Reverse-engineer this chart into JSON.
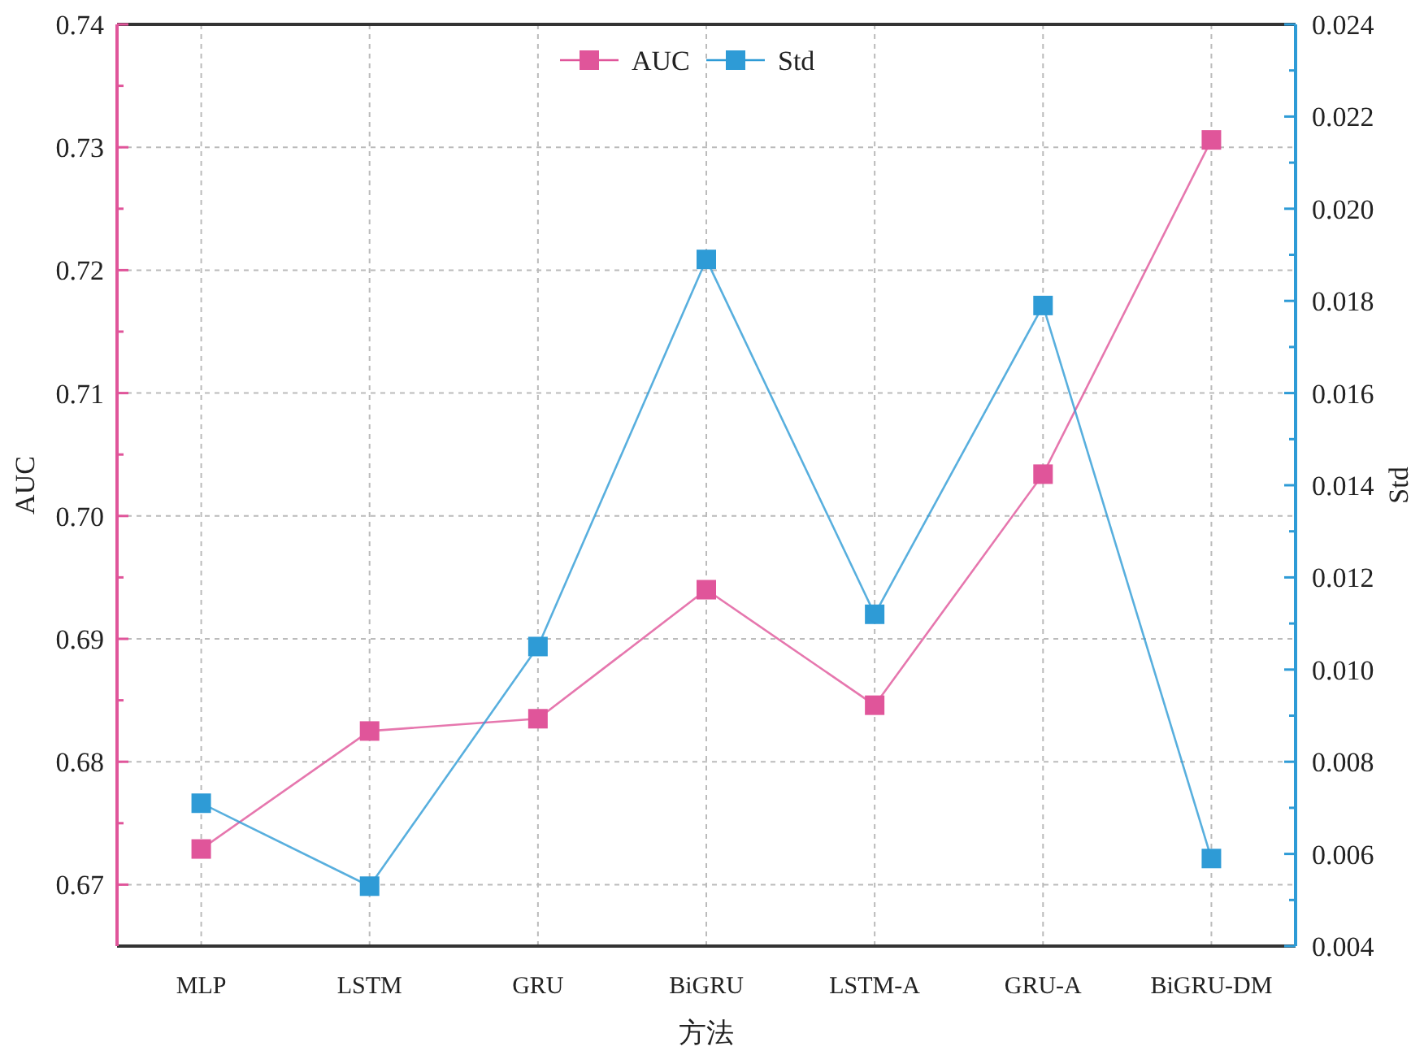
{
  "chart_data": {
    "type": "line",
    "xlabel": "方法",
    "ylabel": "AUC",
    "y2label": "Std",
    "categories": [
      "MLP",
      "LSTM",
      "GRU",
      "BiGRU",
      "LSTM-A",
      "GRU-A",
      "BiGRU-DM"
    ],
    "series": [
      {
        "name": "AUC",
        "color": "#e0559a",
        "values": [
          0.6729,
          0.6825,
          0.6835,
          0.694,
          0.6846,
          0.7034,
          0.7306
        ]
      },
      {
        "name": "Std",
        "color": "#2e9bd6",
        "axis": "y2",
        "values": [
          0.0071,
          0.0053,
          0.0105,
          0.0189,
          0.0112,
          0.0179,
          0.0059
        ]
      }
    ],
    "ylim": [
      0.665,
      0.74
    ],
    "yticks": [
      0.67,
      {
        "value": 0.675,
        "label": null
      },
      0.68,
      {
        "value": 0.685,
        "label": null
      },
      0.69,
      {
        "value": 0.695,
        "label": null
      },
      {
        "value": 0.7,
        "label": "0.70"
      },
      {
        "value": 0.705,
        "label": null
      },
      0.71,
      {
        "value": 0.715,
        "label": null
      },
      0.72,
      {
        "value": 0.725,
        "label": null
      },
      0.73,
      {
        "value": 0.735,
        "label": null
      },
      0.74
    ],
    "y2lim": [
      0.004,
      0.024
    ],
    "y2ticks": [
      0.004,
      {
        "value": 0.005,
        "label": null
      },
      0.006,
      {
        "value": 0.007,
        "label": null
      },
      0.008,
      {
        "value": 0.009,
        "label": null
      },
      {
        "value": 0.01,
        "label": "0.010"
      },
      {
        "value": 0.011,
        "label": null
      },
      0.012,
      {
        "value": 0.013,
        "label": null
      },
      0.014,
      {
        "value": 0.015,
        "label": null
      },
      0.016,
      {
        "value": 0.017,
        "label": null
      },
      0.018,
      {
        "value": 0.019,
        "label": null
      },
      {
        "value": 0.02,
        "label": "0.020"
      },
      {
        "value": 0.021,
        "label": null
      },
      0.022,
      {
        "value": 0.023,
        "label": null
      },
      0.024
    ],
    "grid": true,
    "legend": "top",
    "marker": "square",
    "line_style": "solid"
  }
}
